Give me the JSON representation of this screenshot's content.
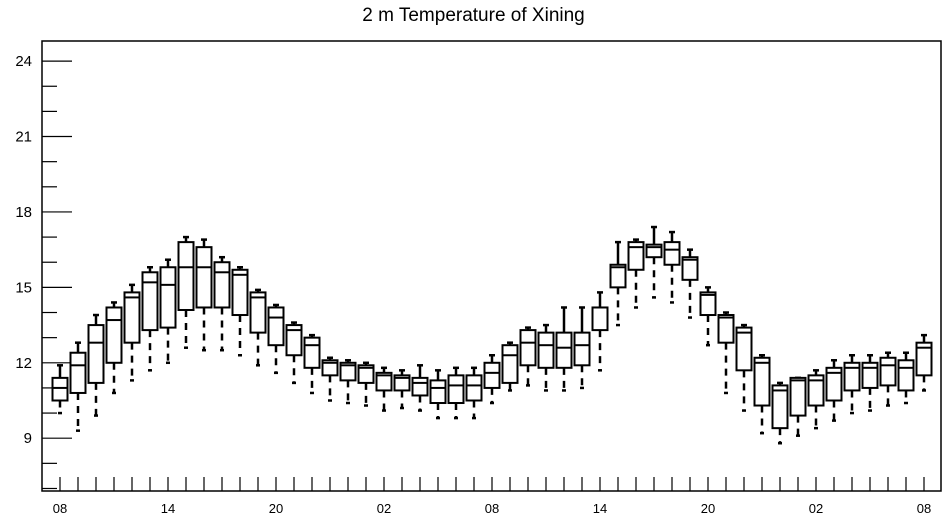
{
  "chart_data": {
    "type": "boxplot",
    "title": "2 m Temperature of Xining",
    "xlabel": "",
    "ylabel": "",
    "ylim": [
      6.9,
      24.8
    ],
    "y_ticks": [
      9,
      12,
      15,
      18,
      21,
      24
    ],
    "y_tick_labels": [
      "9",
      "12",
      "15",
      "18",
      "21",
      "24"
    ],
    "x_tick_labels": [
      "08",
      "14",
      "20",
      "02",
      "08",
      "14",
      "20",
      "02",
      "08"
    ],
    "x_tick_steps": [
      0,
      6,
      12,
      18,
      24,
      30,
      36,
      42,
      48
    ],
    "grid": false,
    "boxes": [
      {
        "step": 0,
        "whisker_low": 10.0,
        "q1": 10.5,
        "median": 11.0,
        "q3": 11.4,
        "whisker_high": 11.9
      },
      {
        "step": 1,
        "whisker_low": 9.3,
        "q1": 10.8,
        "median": 11.9,
        "q3": 12.4,
        "whisker_high": 12.8
      },
      {
        "step": 2,
        "whisker_low": 9.9,
        "q1": 11.2,
        "median": 12.8,
        "q3": 13.5,
        "whisker_high": 13.9
      },
      {
        "step": 3,
        "whisker_low": 10.8,
        "q1": 12.0,
        "median": 13.7,
        "q3": 14.2,
        "whisker_high": 14.4
      },
      {
        "step": 4,
        "whisker_low": 11.3,
        "q1": 12.8,
        "median": 14.6,
        "q3": 14.8,
        "whisker_high": 15.1
      },
      {
        "step": 5,
        "whisker_low": 11.7,
        "q1": 13.3,
        "median": 15.2,
        "q3": 15.6,
        "whisker_high": 15.8
      },
      {
        "step": 6,
        "whisker_low": 12.0,
        "q1": 13.4,
        "median": 15.1,
        "q3": 15.8,
        "whisker_high": 16.1
      },
      {
        "step": 7,
        "whisker_low": 12.6,
        "q1": 14.1,
        "median": 15.8,
        "q3": 16.8,
        "whisker_high": 17.0
      },
      {
        "step": 8,
        "whisker_low": 12.5,
        "q1": 14.2,
        "median": 15.8,
        "q3": 16.6,
        "whisker_high": 16.9
      },
      {
        "step": 9,
        "whisker_low": 12.5,
        "q1": 14.2,
        "median": 15.6,
        "q3": 16.0,
        "whisker_high": 16.2
      },
      {
        "step": 10,
        "whisker_low": 12.3,
        "q1": 13.9,
        "median": 15.5,
        "q3": 15.7,
        "whisker_high": 15.8
      },
      {
        "step": 11,
        "whisker_low": 11.9,
        "q1": 13.2,
        "median": 14.6,
        "q3": 14.8,
        "whisker_high": 14.9
      },
      {
        "step": 12,
        "whisker_low": 11.6,
        "q1": 12.7,
        "median": 13.8,
        "q3": 14.2,
        "whisker_high": 14.3
      },
      {
        "step": 13,
        "whisker_low": 11.2,
        "q1": 12.3,
        "median": 13.3,
        "q3": 13.5,
        "whisker_high": 13.6
      },
      {
        "step": 14,
        "whisker_low": 10.8,
        "q1": 11.8,
        "median": 12.7,
        "q3": 13.0,
        "whisker_high": 13.1
      },
      {
        "step": 15,
        "whisker_low": 10.5,
        "q1": 11.5,
        "median": 12.0,
        "q3": 12.1,
        "whisker_high": 12.2
      },
      {
        "step": 16,
        "whisker_low": 10.4,
        "q1": 11.3,
        "median": 11.9,
        "q3": 12.0,
        "whisker_high": 12.1
      },
      {
        "step": 17,
        "whisker_low": 10.3,
        "q1": 11.2,
        "median": 11.8,
        "q3": 11.9,
        "whisker_high": 12.0
      },
      {
        "step": 18,
        "whisker_low": 10.1,
        "q1": 10.9,
        "median": 11.5,
        "q3": 11.6,
        "whisker_high": 11.8
      },
      {
        "step": 19,
        "whisker_low": 10.2,
        "q1": 10.9,
        "median": 11.4,
        "q3": 11.5,
        "whisker_high": 11.7
      },
      {
        "step": 20,
        "whisker_low": 10.1,
        "q1": 10.7,
        "median": 11.2,
        "q3": 11.4,
        "whisker_high": 11.9
      },
      {
        "step": 21,
        "whisker_low": 9.8,
        "q1": 10.4,
        "median": 11.0,
        "q3": 11.3,
        "whisker_high": 11.7
      },
      {
        "step": 22,
        "whisker_low": 9.8,
        "q1": 10.4,
        "median": 11.1,
        "q3": 11.5,
        "whisker_high": 11.8
      },
      {
        "step": 23,
        "whisker_low": 9.8,
        "q1": 10.5,
        "median": 11.1,
        "q3": 11.5,
        "whisker_high": 11.8
      },
      {
        "step": 24,
        "whisker_low": 10.4,
        "q1": 11.0,
        "median": 11.6,
        "q3": 12.0,
        "whisker_high": 12.3
      },
      {
        "step": 25,
        "whisker_low": 10.9,
        "q1": 11.2,
        "median": 12.3,
        "q3": 12.7,
        "whisker_high": 12.8
      },
      {
        "step": 26,
        "whisker_low": 11.1,
        "q1": 11.9,
        "median": 12.8,
        "q3": 13.3,
        "whisker_high": 13.4
      },
      {
        "step": 27,
        "whisker_low": 10.9,
        "q1": 11.8,
        "median": 12.7,
        "q3": 13.2,
        "whisker_high": 13.5
      },
      {
        "step": 28,
        "whisker_low": 10.9,
        "q1": 11.8,
        "median": 12.6,
        "q3": 13.2,
        "whisker_high": 14.2
      },
      {
        "step": 29,
        "whisker_low": 11.0,
        "q1": 11.9,
        "median": 12.7,
        "q3": 13.2,
        "whisker_high": 14.2
      },
      {
        "step": 30,
        "whisker_low": 11.7,
        "q1": 13.3,
        "median": 14.2,
        "q3": 14.2,
        "whisker_high": 14.8
      },
      {
        "step": 31,
        "whisker_low": 13.5,
        "q1": 15.0,
        "median": 15.8,
        "q3": 15.9,
        "whisker_high": 16.8
      },
      {
        "step": 32,
        "whisker_low": 14.2,
        "q1": 15.7,
        "median": 16.6,
        "q3": 16.8,
        "whisker_high": 16.9
      },
      {
        "step": 33,
        "whisker_low": 14.6,
        "q1": 16.2,
        "median": 16.6,
        "q3": 16.7,
        "whisker_high": 17.4
      },
      {
        "step": 34,
        "whisker_low": 14.4,
        "q1": 15.9,
        "median": 16.5,
        "q3": 16.8,
        "whisker_high": 17.2
      },
      {
        "step": 35,
        "whisker_low": 13.8,
        "q1": 15.3,
        "median": 16.1,
        "q3": 16.2,
        "whisker_high": 16.5
      },
      {
        "step": 36,
        "whisker_low": 12.7,
        "q1": 13.9,
        "median": 14.7,
        "q3": 14.8,
        "whisker_high": 15.0
      },
      {
        "step": 37,
        "whisker_low": 10.8,
        "q1": 12.8,
        "median": 13.8,
        "q3": 13.9,
        "whisker_high": 14.0
      },
      {
        "step": 38,
        "whisker_low": 10.1,
        "q1": 11.7,
        "median": 13.2,
        "q3": 13.4,
        "whisker_high": 13.5
      },
      {
        "step": 39,
        "whisker_low": 9.2,
        "q1": 10.3,
        "median": 12.0,
        "q3": 12.2,
        "whisker_high": 12.3
      },
      {
        "step": 40,
        "whisker_low": 8.8,
        "q1": 9.4,
        "median": 10.9,
        "q3": 11.1,
        "whisker_high": 11.2
      },
      {
        "step": 41,
        "whisker_low": 9.1,
        "q1": 9.9,
        "median": 11.3,
        "q3": 11.4,
        "whisker_high": 11.4
      },
      {
        "step": 42,
        "whisker_low": 9.4,
        "q1": 10.3,
        "median": 11.3,
        "q3": 11.5,
        "whisker_high": 11.7
      },
      {
        "step": 43,
        "whisker_low": 9.7,
        "q1": 10.5,
        "median": 11.6,
        "q3": 11.8,
        "whisker_high": 12.1
      },
      {
        "step": 44,
        "whisker_low": 10.0,
        "q1": 10.9,
        "median": 11.8,
        "q3": 12.0,
        "whisker_high": 12.3
      },
      {
        "step": 45,
        "whisker_low": 10.1,
        "q1": 11.0,
        "median": 11.8,
        "q3": 12.0,
        "whisker_high": 12.3
      },
      {
        "step": 46,
        "whisker_low": 10.3,
        "q1": 11.1,
        "median": 11.9,
        "q3": 12.2,
        "whisker_high": 12.4
      },
      {
        "step": 47,
        "whisker_low": 10.4,
        "q1": 10.9,
        "median": 11.8,
        "q3": 12.1,
        "whisker_high": 12.4
      },
      {
        "step": 48,
        "whisker_low": 10.9,
        "q1": 11.5,
        "median": 12.6,
        "q3": 12.8,
        "whisker_high": 13.1
      }
    ]
  }
}
